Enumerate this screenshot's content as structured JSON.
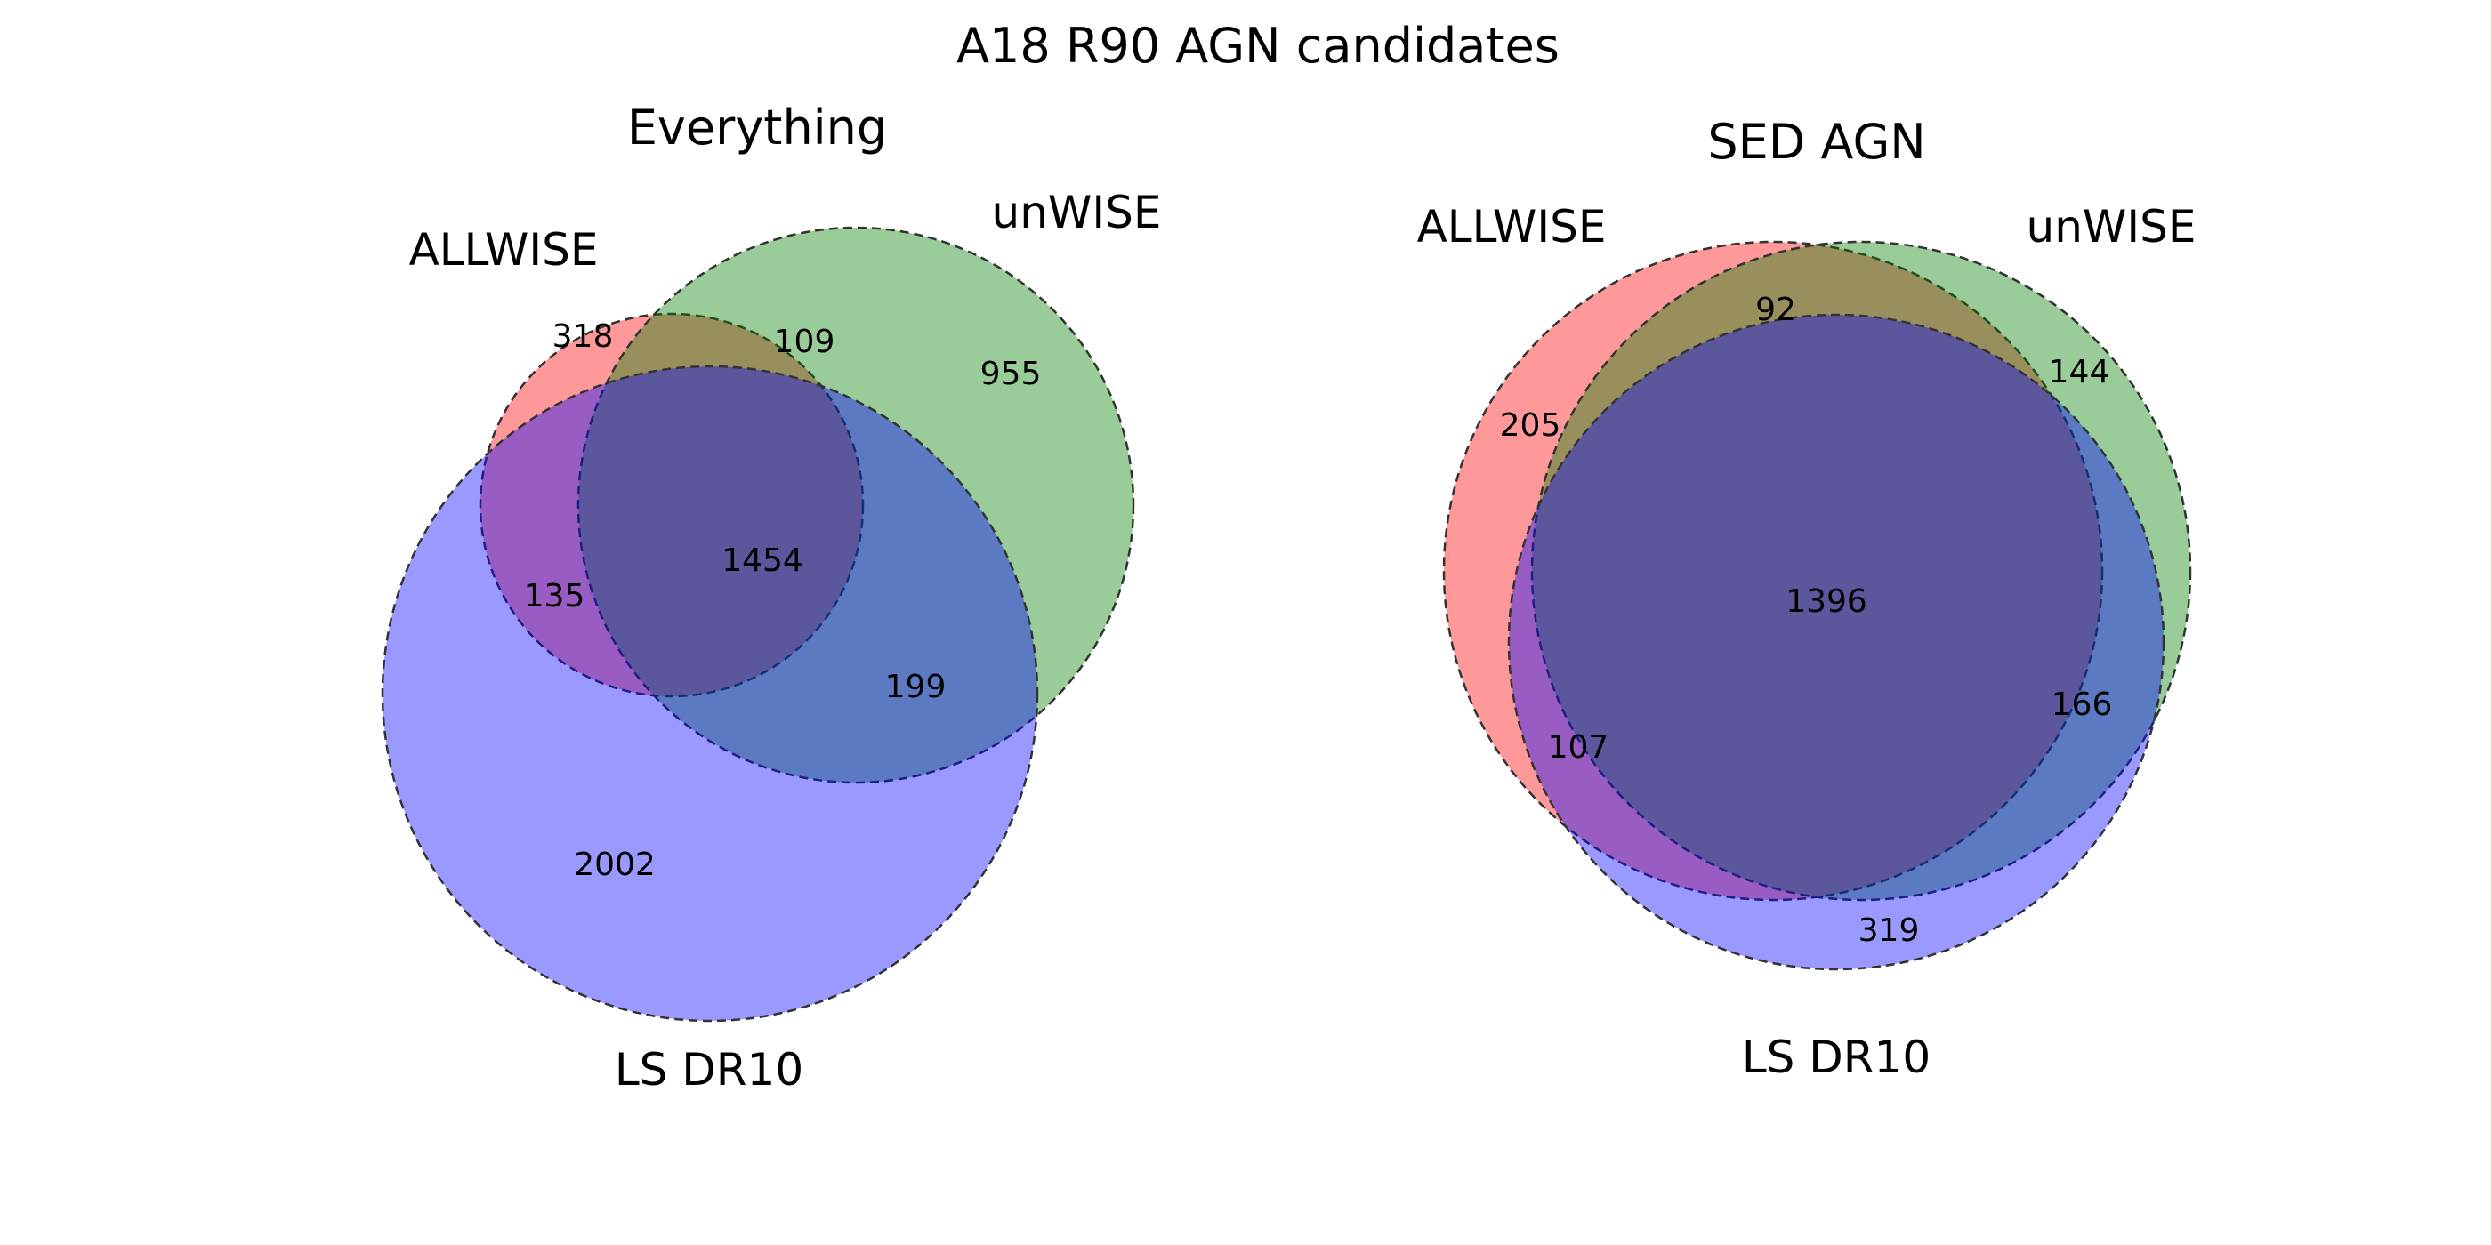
{
  "figure_title": "A18 R90 AGN candidates",
  "colors": {
    "set_a": "#ff0000",
    "set_b": "#008000",
    "set_c": "#0000ff",
    "outline": "#333333"
  },
  "diagrams": [
    {
      "title": "Everything",
      "sets": [
        "ALLWISE",
        "unWISE",
        "LS DR10"
      ],
      "regions": {
        "only_allwise": "318",
        "allwise_unwise": "109",
        "only_unwise": "955",
        "allwise_ls": "135",
        "all_three": "1454",
        "unwise_ls": "199",
        "only_ls": "2002"
      }
    },
    {
      "title": "SED AGN",
      "sets": [
        "ALLWISE",
        "unWISE",
        "LS DR10"
      ],
      "regions": {
        "allwise_unwise": "92",
        "only_unwise": "144",
        "only_allwise": "205",
        "all_three": "1396",
        "unwise_ls": "166",
        "allwise_ls": "107",
        "only_ls": "319"
      }
    }
  ]
}
